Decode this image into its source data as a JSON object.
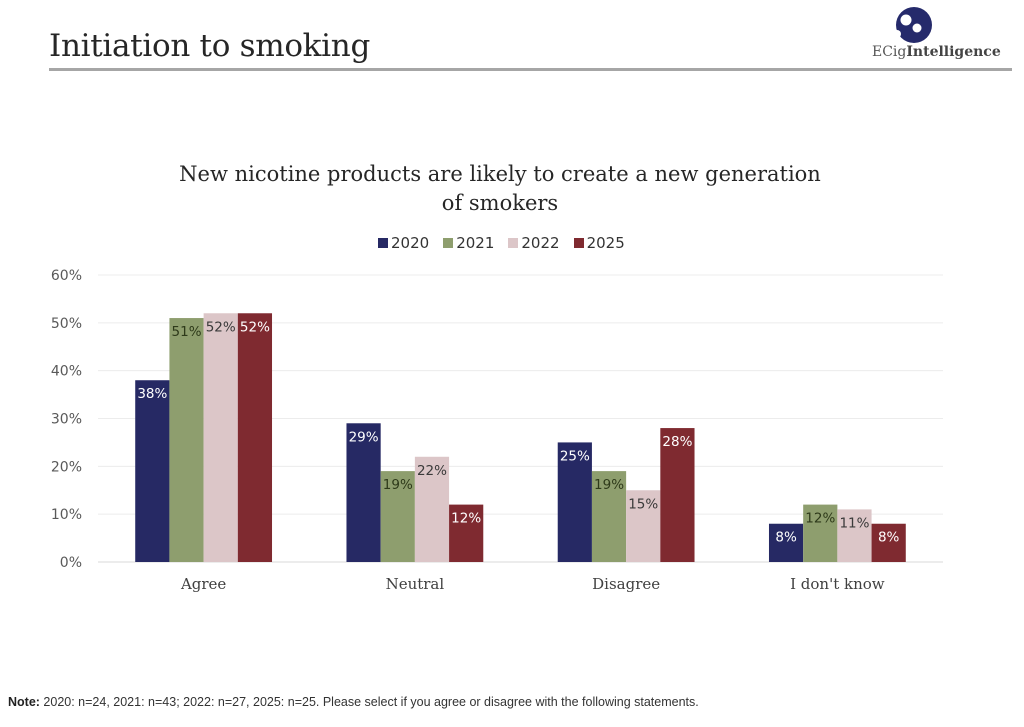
{
  "header": {
    "title": "Initiation to smoking",
    "logo_text_light": "ECig",
    "logo_text_bold": "Intelligence",
    "logo_color": "#252a6b"
  },
  "chart_data": {
    "type": "bar",
    "title_line1": "New nicotine products are likely to create a new generation",
    "title_line2": "of smokers",
    "categories": [
      "Agree",
      "Neutral",
      "Disagree",
      "I don't know"
    ],
    "series": [
      {
        "name": "2020",
        "color": "#262964",
        "label_color": "#ffffff",
        "values": [
          38,
          29,
          25,
          8
        ],
        "labels": [
          "38%",
          "29%",
          "25%",
          "8%"
        ]
      },
      {
        "name": "2021",
        "color": "#8e9e6e",
        "label_color": "#2e3a1a",
        "values": [
          51,
          19,
          19,
          12
        ],
        "labels": [
          "51%",
          "19%",
          "19%",
          "12%"
        ]
      },
      {
        "name": "2022",
        "color": "#dcc6c8",
        "label_color": "#3a3a3a",
        "values": [
          52,
          22,
          15,
          11
        ],
        "labels": [
          "52%",
          "22%",
          "15%",
          "11%"
        ]
      },
      {
        "name": "2025",
        "color": "#7f2a30",
        "label_color": "#ffffff",
        "values": [
          52,
          12,
          28,
          8
        ],
        "labels": [
          "52%",
          "12%",
          "28%",
          "8%"
        ]
      }
    ],
    "xlabel": "",
    "ylabel": "",
    "ylim": [
      0,
      60
    ],
    "yticks": [
      0,
      10,
      20,
      30,
      40,
      50,
      60
    ],
    "ytick_labels": [
      "0%",
      "10%",
      "20%",
      "30%",
      "40%",
      "50%",
      "60%"
    ],
    "grid": true,
    "legend_position": "top"
  },
  "footer": {
    "note_label": "Note:",
    "note_text": " 2020: n=24, 2021: n=43; 2022: n=27, 2025: n=25. Please select if you agree or disagree with the following statements."
  }
}
